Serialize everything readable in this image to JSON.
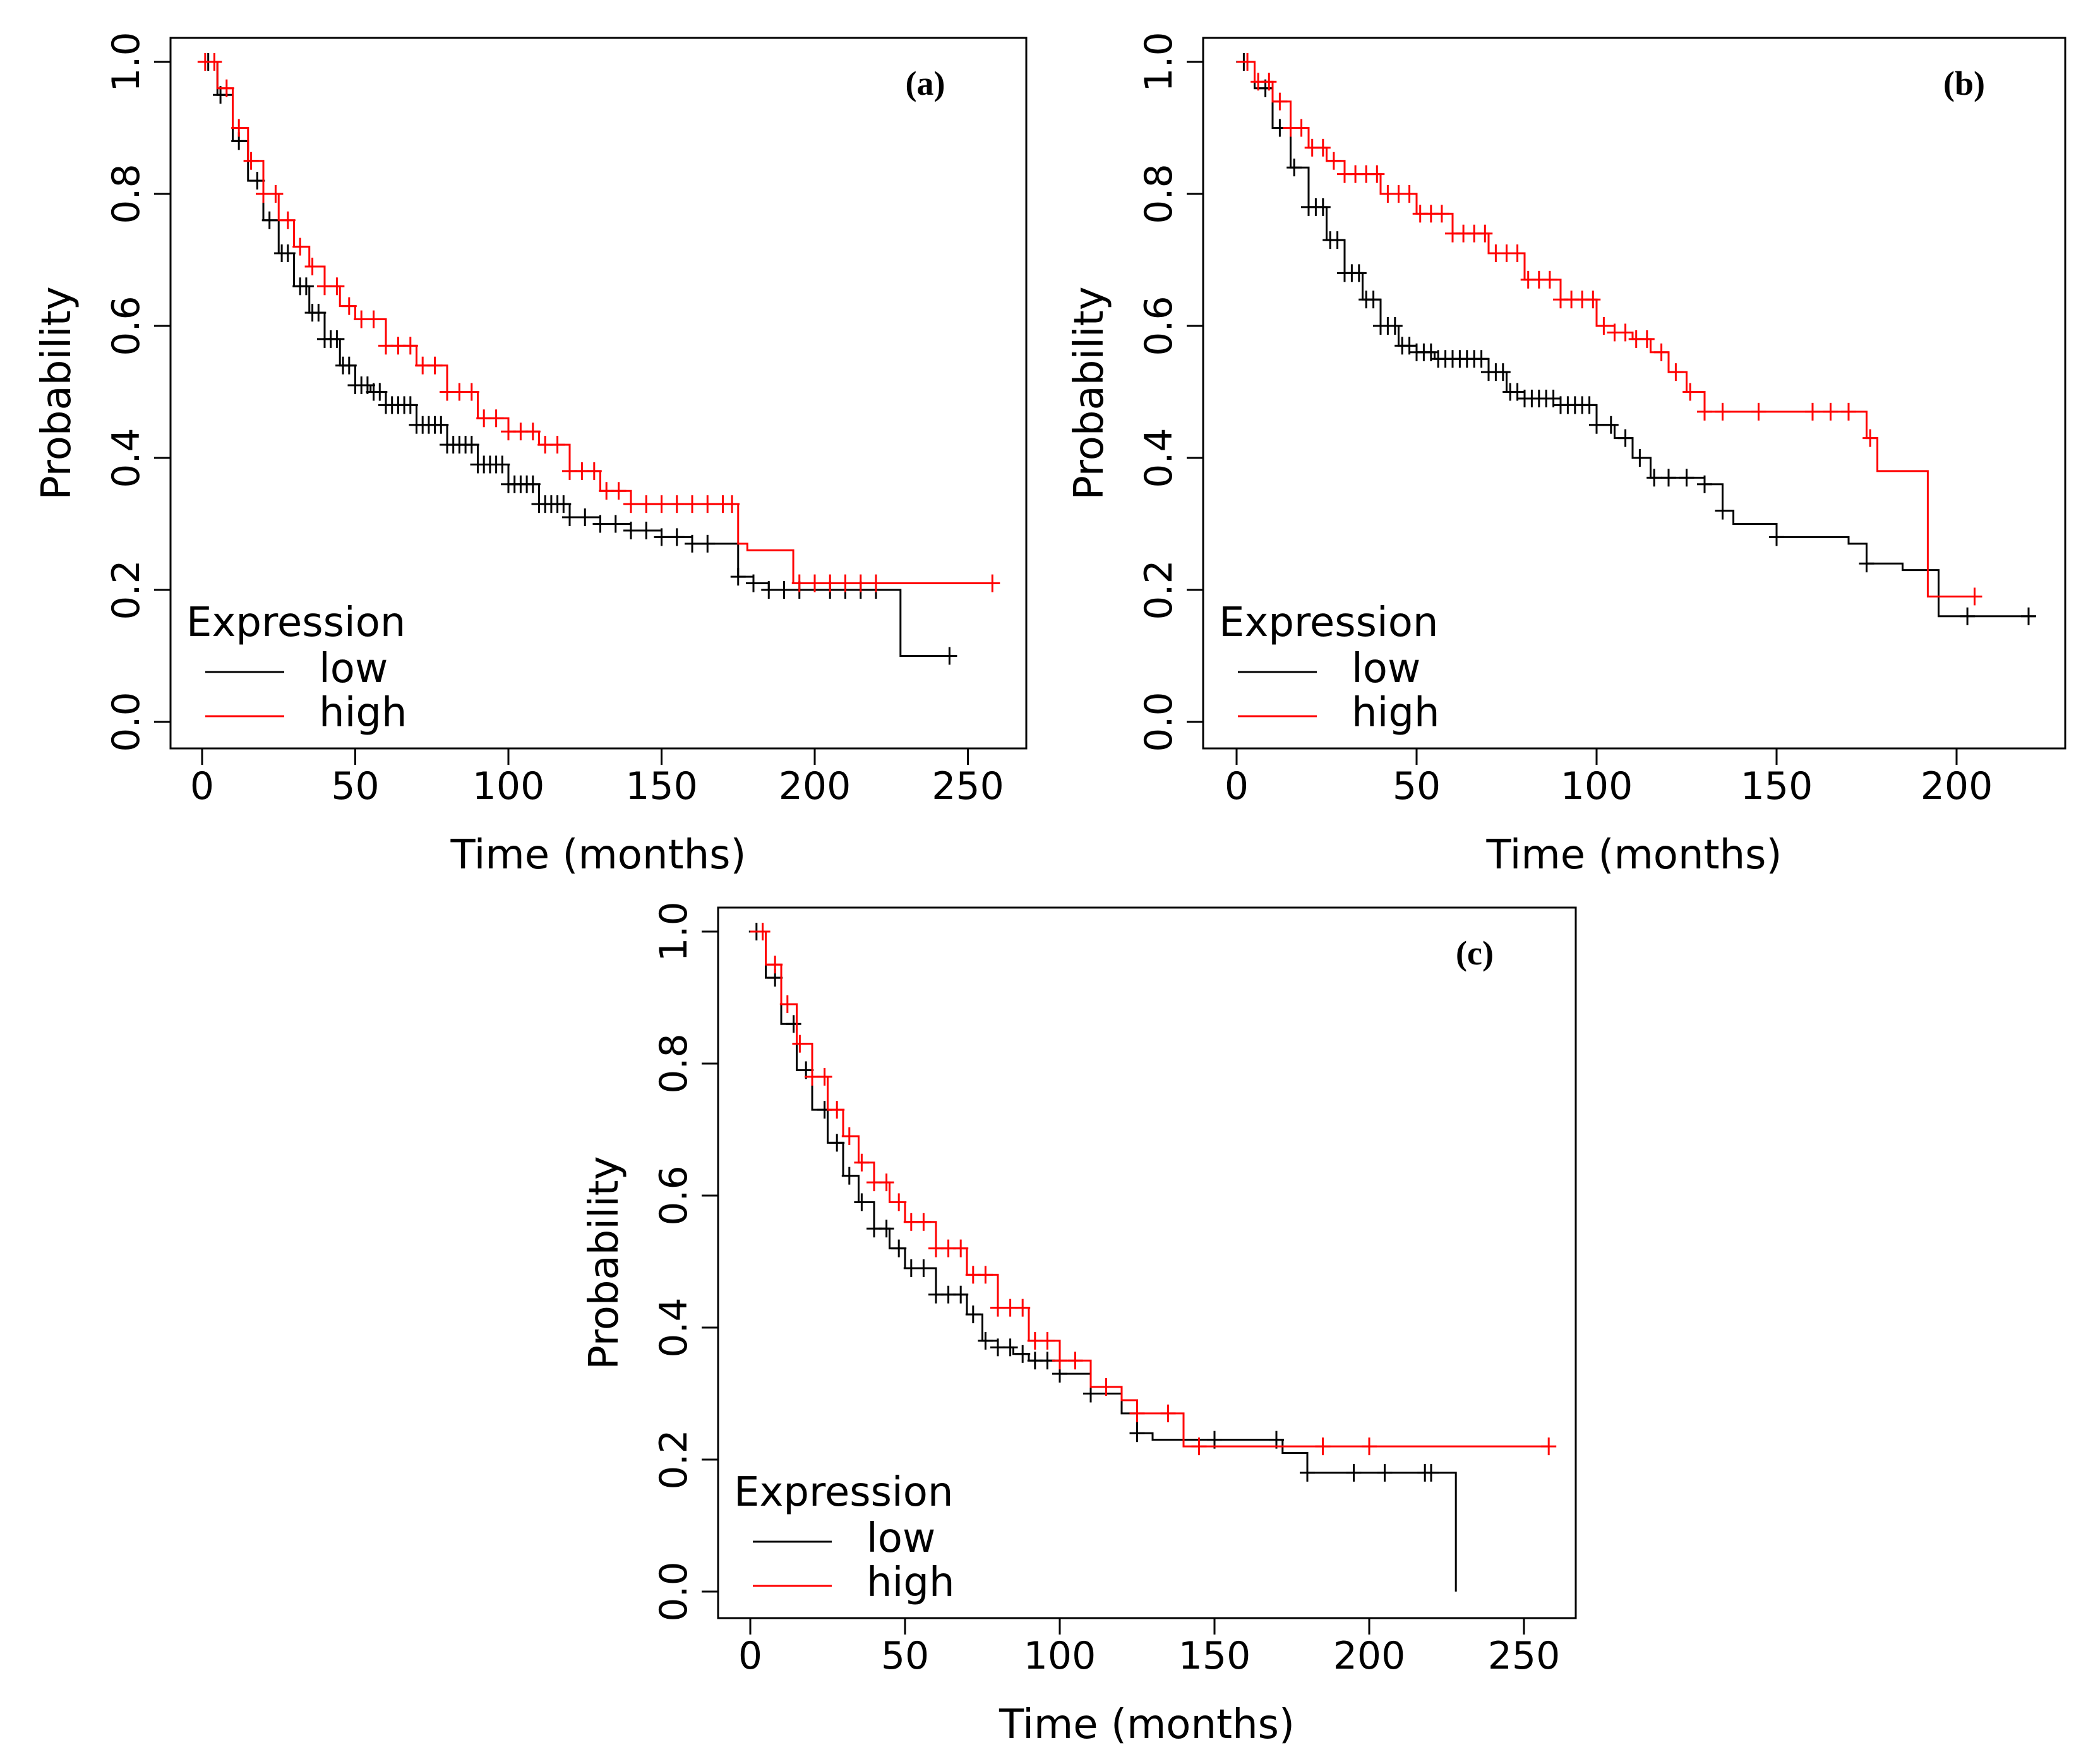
{
  "colors": {
    "low": "#000000",
    "high": "#ff0000",
    "axis": "#000000",
    "background": "#ffffff"
  },
  "chart_data": [
    {
      "type": "line",
      "panel_label": "(a)",
      "xlabel": "Time (months)",
      "ylabel": "Probability",
      "xlim": [
        0,
        260
      ],
      "ylim": [
        0,
        1
      ],
      "xticks": [
        0,
        50,
        100,
        150,
        200,
        250
      ],
      "yticks": [
        0.0,
        0.2,
        0.4,
        0.6,
        0.8,
        1.0
      ],
      "x_tick_labels": [
        "0",
        "50",
        "100",
        "150",
        "200",
        "250"
      ],
      "y_tick_labels": [
        "0.0",
        "0.2",
        "0.4",
        "0.6",
        "0.8",
        "1.0"
      ],
      "legend": {
        "title": "Expression",
        "position": "bottom-left",
        "entries": [
          "low",
          "high"
        ]
      },
      "series": [
        {
          "name": "low",
          "x": [
            0,
            5,
            10,
            15,
            20,
            25,
            30,
            35,
            40,
            45,
            50,
            55,
            60,
            70,
            80,
            90,
            100,
            110,
            120,
            130,
            140,
            150,
            160,
            170,
            175,
            180,
            185,
            190,
            228,
            244
          ],
          "y": [
            1.0,
            0.95,
            0.88,
            0.82,
            0.76,
            0.71,
            0.66,
            0.62,
            0.58,
            0.54,
            0.51,
            0.5,
            0.48,
            0.45,
            0.42,
            0.39,
            0.36,
            0.33,
            0.31,
            0.3,
            0.29,
            0.28,
            0.27,
            0.27,
            0.22,
            0.21,
            0.2,
            0.2,
            0.1,
            0.1
          ],
          "censor_x": [
            2,
            6,
            12,
            18,
            22,
            26,
            28,
            32,
            34,
            36,
            38,
            40,
            42,
            44,
            46,
            48,
            50,
            52,
            54,
            56,
            58,
            60,
            62,
            64,
            66,
            68,
            70,
            72,
            74,
            76,
            78,
            80,
            82,
            84,
            86,
            88,
            90,
            92,
            94,
            96,
            98,
            100,
            102,
            104,
            106,
            108,
            110,
            112,
            114,
            116,
            118,
            120,
            125,
            130,
            135,
            140,
            145,
            150,
            155,
            160,
            165,
            175,
            180,
            185,
            190,
            195,
            205,
            210,
            215,
            220,
            244
          ]
        },
        {
          "name": "high",
          "x": [
            0,
            5,
            10,
            15,
            20,
            25,
            30,
            35,
            40,
            45,
            50,
            60,
            70,
            80,
            90,
            100,
            110,
            120,
            130,
            140,
            150,
            170,
            175,
            178,
            185,
            193,
            210,
            230,
            258
          ],
          "y": [
            1.0,
            0.96,
            0.9,
            0.85,
            0.8,
            0.76,
            0.72,
            0.69,
            0.66,
            0.63,
            0.61,
            0.57,
            0.54,
            0.5,
            0.46,
            0.44,
            0.42,
            0.38,
            0.35,
            0.33,
            0.33,
            0.33,
            0.27,
            0.26,
            0.26,
            0.21,
            0.21,
            0.21,
            0.21
          ],
          "censor_x": [
            1,
            4,
            8,
            12,
            16,
            20,
            24,
            28,
            32,
            36,
            40,
            44,
            48,
            52,
            56,
            60,
            64,
            68,
            72,
            76,
            80,
            84,
            88,
            92,
            96,
            100,
            104,
            108,
            112,
            116,
            120,
            124,
            128,
            132,
            136,
            140,
            145,
            150,
            155,
            160,
            165,
            170,
            173,
            195,
            200,
            205,
            210,
            215,
            220,
            258
          ]
        }
      ]
    },
    {
      "type": "line",
      "panel_label": "(b)",
      "xlabel": "Time (months)",
      "ylabel": "Probability",
      "xlim": [
        0,
        225
      ],
      "ylim": [
        0,
        1
      ],
      "xticks": [
        0,
        50,
        100,
        150,
        200
      ],
      "yticks": [
        0.0,
        0.2,
        0.4,
        0.6,
        0.8,
        1.0
      ],
      "x_tick_labels": [
        "0",
        "50",
        "100",
        "150",
        "200"
      ],
      "y_tick_labels": [
        "0.0",
        "0.2",
        "0.4",
        "0.6",
        "0.8",
        "1.0"
      ],
      "legend": {
        "title": "Expression",
        "position": "bottom-left",
        "entries": [
          "low",
          "high"
        ]
      },
      "series": [
        {
          "name": "low",
          "x": [
            0,
            5,
            10,
            15,
            20,
            25,
            30,
            35,
            40,
            45,
            50,
            55,
            60,
            70,
            75,
            80,
            90,
            100,
            105,
            110,
            115,
            120,
            130,
            135,
            138,
            150,
            170,
            175,
            185,
            195,
            210,
            222
          ],
          "y": [
            1.0,
            0.96,
            0.9,
            0.84,
            0.78,
            0.73,
            0.68,
            0.64,
            0.6,
            0.57,
            0.56,
            0.55,
            0.55,
            0.53,
            0.5,
            0.49,
            0.48,
            0.45,
            0.43,
            0.4,
            0.37,
            0.37,
            0.36,
            0.32,
            0.3,
            0.28,
            0.27,
            0.24,
            0.23,
            0.16,
            0.16,
            0.16
          ],
          "censor_x": [
            2,
            8,
            12,
            16,
            20,
            22,
            24,
            26,
            28,
            30,
            32,
            34,
            36,
            38,
            40,
            42,
            44,
            46,
            48,
            50,
            52,
            54,
            56,
            58,
            60,
            62,
            64,
            66,
            68,
            70,
            72,
            74,
            76,
            78,
            80,
            82,
            84,
            86,
            88,
            90,
            92,
            94,
            96,
            98,
            100,
            104,
            108,
            112,
            116,
            120,
            125,
            130,
            135,
            150,
            175,
            203,
            220
          ]
        },
        {
          "name": "high",
          "x": [
            0,
            5,
            10,
            15,
            20,
            25,
            30,
            40,
            50,
            60,
            70,
            80,
            90,
            100,
            105,
            110,
            115,
            120,
            125,
            130,
            170,
            175,
            178,
            192,
            195,
            205
          ],
          "y": [
            1.0,
            0.97,
            0.94,
            0.9,
            0.87,
            0.85,
            0.83,
            0.8,
            0.77,
            0.74,
            0.71,
            0.67,
            0.64,
            0.6,
            0.59,
            0.58,
            0.56,
            0.53,
            0.5,
            0.47,
            0.47,
            0.43,
            0.38,
            0.19,
            0.19,
            0.19
          ],
          "censor_x": [
            3,
            6,
            9,
            12,
            15,
            18,
            21,
            24,
            27,
            30,
            33,
            36,
            39,
            42,
            45,
            48,
            51,
            54,
            57,
            60,
            63,
            66,
            69,
            72,
            75,
            78,
            81,
            84,
            87,
            90,
            93,
            96,
            99,
            102,
            105,
            108,
            111,
            114,
            118,
            122,
            126,
            130,
            135,
            145,
            160,
            165,
            170,
            176,
            205
          ]
        }
      ]
    },
    {
      "type": "line",
      "panel_label": "(c)",
      "xlabel": "Time (months)",
      "ylabel": "Probability",
      "xlim": [
        0,
        260
      ],
      "ylim": [
        0,
        1
      ],
      "xticks": [
        0,
        50,
        100,
        150,
        200,
        250
      ],
      "yticks": [
        0.0,
        0.2,
        0.4,
        0.6,
        0.8,
        1.0
      ],
      "x_tick_labels": [
        "0",
        "50",
        "100",
        "150",
        "200",
        "250"
      ],
      "y_tick_labels": [
        "0.0",
        "0.2",
        "0.4",
        "0.6",
        "0.8",
        "1.0"
      ],
      "legend": {
        "title": "Expression",
        "position": "bottom-left",
        "entries": [
          "low",
          "high"
        ]
      },
      "series": [
        {
          "name": "low",
          "x": [
            0,
            5,
            10,
            15,
            20,
            25,
            30,
            35,
            40,
            45,
            50,
            60,
            70,
            75,
            80,
            85,
            90,
            100,
            110,
            120,
            125,
            130,
            150,
            172,
            180,
            200,
            222,
            228
          ],
          "y": [
            1.0,
            0.93,
            0.86,
            0.79,
            0.73,
            0.68,
            0.63,
            0.59,
            0.55,
            0.52,
            0.49,
            0.45,
            0.42,
            0.38,
            0.37,
            0.36,
            0.35,
            0.33,
            0.3,
            0.27,
            0.24,
            0.23,
            0.23,
            0.21,
            0.18,
            0.18,
            0.18,
            0.0
          ],
          "censor_x": [
            2,
            8,
            14,
            18,
            24,
            28,
            32,
            36,
            40,
            44,
            48,
            52,
            56,
            60,
            64,
            68,
            72,
            76,
            80,
            84,
            88,
            92,
            96,
            100,
            110,
            125,
            150,
            170,
            180,
            195,
            205,
            218,
            220
          ]
        },
        {
          "name": "high",
          "x": [
            0,
            5,
            10,
            15,
            20,
            25,
            30,
            35,
            40,
            45,
            50,
            60,
            70,
            80,
            90,
            100,
            110,
            120,
            125,
            130,
            140,
            150,
            180,
            200,
            258
          ],
          "y": [
            1.0,
            0.95,
            0.89,
            0.83,
            0.78,
            0.73,
            0.69,
            0.65,
            0.62,
            0.59,
            0.56,
            0.52,
            0.48,
            0.43,
            0.38,
            0.35,
            0.31,
            0.29,
            0.27,
            0.27,
            0.22,
            0.22,
            0.22,
            0.22,
            0.22
          ],
          "censor_x": [
            4,
            8,
            12,
            16,
            20,
            24,
            28,
            32,
            36,
            40,
            44,
            48,
            52,
            56,
            60,
            64,
            68,
            72,
            76,
            80,
            84,
            88,
            92,
            96,
            100,
            105,
            115,
            125,
            135,
            145,
            185,
            200,
            258
          ]
        }
      ]
    }
  ]
}
